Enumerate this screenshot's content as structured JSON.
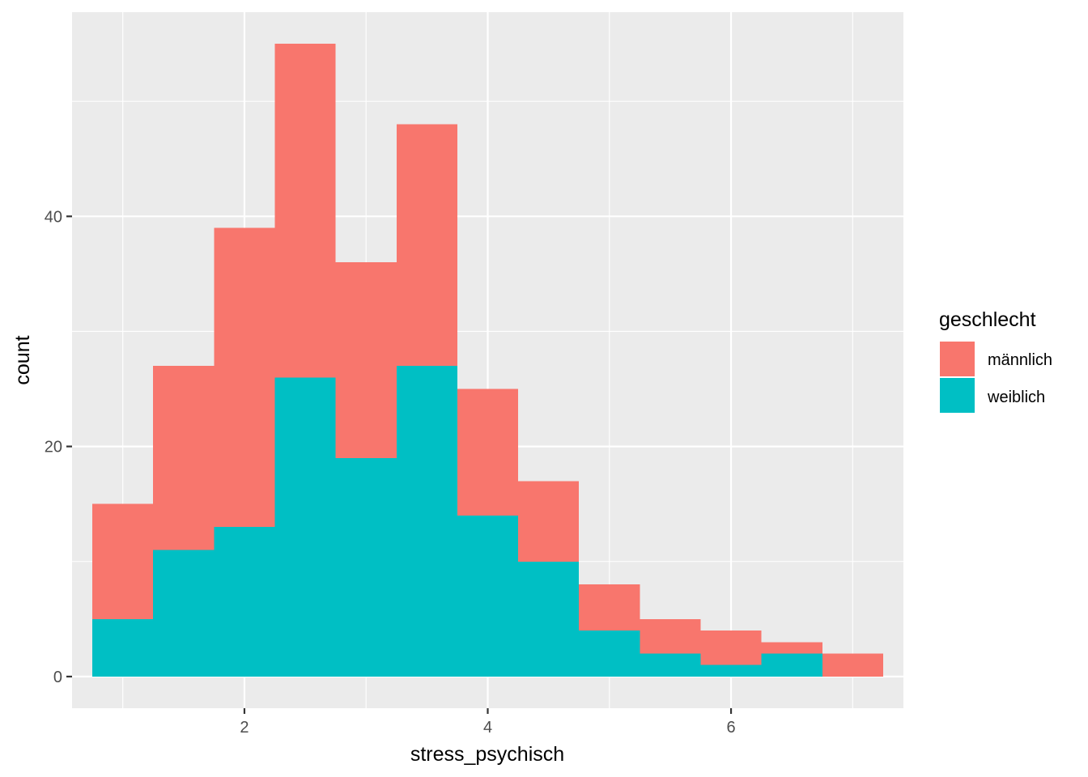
{
  "chart_data": {
    "type": "bar",
    "stacked": true,
    "xlabel": "stress_psychisch",
    "ylabel": "count",
    "xlim": [
      0.583,
      7.417
    ],
    "ylim": [
      -2.75,
      57.75
    ],
    "x_ticks": [
      2,
      4,
      6
    ],
    "y_ticks": [
      0,
      20,
      40
    ],
    "bin_width": 0.5,
    "bin_centers": [
      1.0,
      1.5,
      2.0,
      2.5,
      3.0,
      3.5,
      4.0,
      4.5,
      5.0,
      5.5,
      6.0,
      6.5,
      7.0
    ],
    "series": [
      {
        "name": "männlich",
        "color": "#F8766D",
        "values": [
          10,
          16,
          26,
          29,
          17,
          21,
          11,
          7,
          4,
          3,
          3,
          1,
          2
        ]
      },
      {
        "name": "weiblich",
        "color": "#00BFC4",
        "values": [
          5,
          11,
          13,
          26,
          19,
          27,
          14,
          10,
          4,
          2,
          1,
          2,
          0
        ]
      }
    ],
    "legend": {
      "title": "geschlecht",
      "position": "right"
    },
    "grid": true,
    "background": "#EBEBEB",
    "grid_color": "#FFFFFF"
  }
}
